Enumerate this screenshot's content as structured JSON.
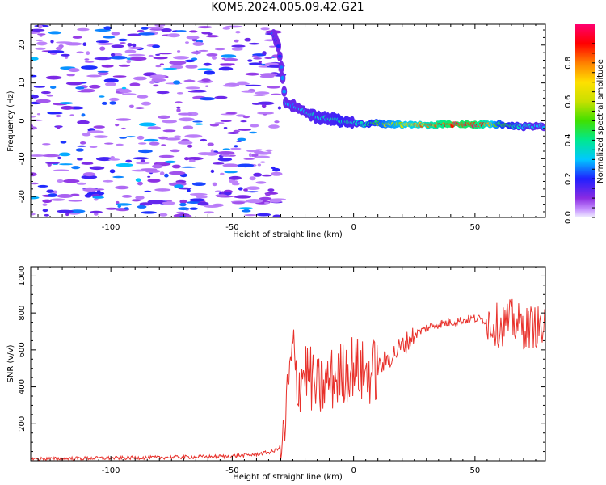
{
  "figure": {
    "title": "KOM5.2024.005.09.42.G21"
  },
  "chart_data": [
    {
      "type": "heatmap",
      "xlabel": "Height of straight line (km)",
      "ylabel": "Frequency (Hz)",
      "xlim": [
        -133,
        79
      ],
      "ylim": [
        -25.5,
        25.5
      ],
      "xticks": [
        -100,
        -50,
        0,
        50
      ],
      "yticks": [
        -20,
        -10,
        0,
        10,
        20
      ],
      "colorbar": {
        "label": "Normalized spectral amplitude",
        "range": [
          0.0,
          1.0
        ],
        "ticks": [
          0.0,
          0.2,
          0.4,
          0.6,
          0.8
        ],
        "colormap": "rainbow (purple to red)"
      },
      "noise_region": {
        "x_range": [
          -133,
          -30
        ],
        "amplitude_range": [
          0.05,
          0.2
        ]
      },
      "signal_ridge": [
        {
          "x": -33,
          "y": 23,
          "amp": 0.25
        },
        {
          "x": -31,
          "y": 20,
          "amp": 0.2
        },
        {
          "x": -28,
          "y": 5,
          "amp": 0.3
        },
        {
          "x": -22,
          "y": 3,
          "amp": 0.3
        },
        {
          "x": -15,
          "y": 1,
          "amp": 0.35
        },
        {
          "x": -10,
          "y": 0.5,
          "amp": 0.35
        },
        {
          "x": -5,
          "y": 0,
          "amp": 0.4
        },
        {
          "x": 0,
          "y": -0.5,
          "amp": 0.35
        },
        {
          "x": 5,
          "y": -1,
          "amp": 0.4
        },
        {
          "x": 10,
          "y": -0.5,
          "amp": 0.5
        },
        {
          "x": 15,
          "y": -1,
          "amp": 0.6
        },
        {
          "x": 20,
          "y": -1,
          "amp": 0.65
        },
        {
          "x": 30,
          "y": -1,
          "amp": 0.8
        },
        {
          "x": 40,
          "y": -1,
          "amp": 0.95
        },
        {
          "x": 50,
          "y": -1,
          "amp": 0.95
        },
        {
          "x": 55,
          "y": -1,
          "amp": 0.8
        },
        {
          "x": 60,
          "y": -1,
          "amp": 0.5
        },
        {
          "x": 70,
          "y": -1.5,
          "amp": 0.35
        },
        {
          "x": 79,
          "y": -1.5,
          "amp": 0.3
        }
      ]
    },
    {
      "type": "line",
      "xlabel": "Height of straight line (km)",
      "ylabel": "SNR (v/v)",
      "xlim": [
        -133,
        79
      ],
      "ylim": [
        0,
        1050
      ],
      "xticks": [
        -100,
        -50,
        0,
        50
      ],
      "yticks": [
        200,
        400,
        600,
        800,
        1000
      ],
      "series": [
        {
          "color": "#e8312b",
          "points": [
            {
              "x": -133,
              "y": 10
            },
            {
              "x": -120,
              "y": 12
            },
            {
              "x": -100,
              "y": 15
            },
            {
              "x": -80,
              "y": 18
            },
            {
              "x": -60,
              "y": 22
            },
            {
              "x": -50,
              "y": 25
            },
            {
              "x": -40,
              "y": 35
            },
            {
              "x": -33,
              "y": 50
            },
            {
              "x": -29,
              "y": 90
            },
            {
              "x": -27,
              "y": 380
            },
            {
              "x": -25,
              "y": 600
            },
            {
              "x": -23,
              "y": 400
            },
            {
              "x": -20,
              "y": 500
            },
            {
              "x": -15,
              "y": 380
            },
            {
              "x": -10,
              "y": 430
            },
            {
              "x": -5,
              "y": 470
            },
            {
              "x": 0,
              "y": 520
            },
            {
              "x": 5,
              "y": 460
            },
            {
              "x": 10,
              "y": 500
            },
            {
              "x": 15,
              "y": 560
            },
            {
              "x": 20,
              "y": 620
            },
            {
              "x": 25,
              "y": 680
            },
            {
              "x": 30,
              "y": 720
            },
            {
              "x": 35,
              "y": 740
            },
            {
              "x": 40,
              "y": 750
            },
            {
              "x": 45,
              "y": 760
            },
            {
              "x": 50,
              "y": 770
            },
            {
              "x": 55,
              "y": 760
            },
            {
              "x": 60,
              "y": 730
            },
            {
              "x": 65,
              "y": 760
            },
            {
              "x": 70,
              "y": 720
            },
            {
              "x": 75,
              "y": 730
            },
            {
              "x": 79,
              "y": 700
            }
          ]
        }
      ]
    }
  ]
}
